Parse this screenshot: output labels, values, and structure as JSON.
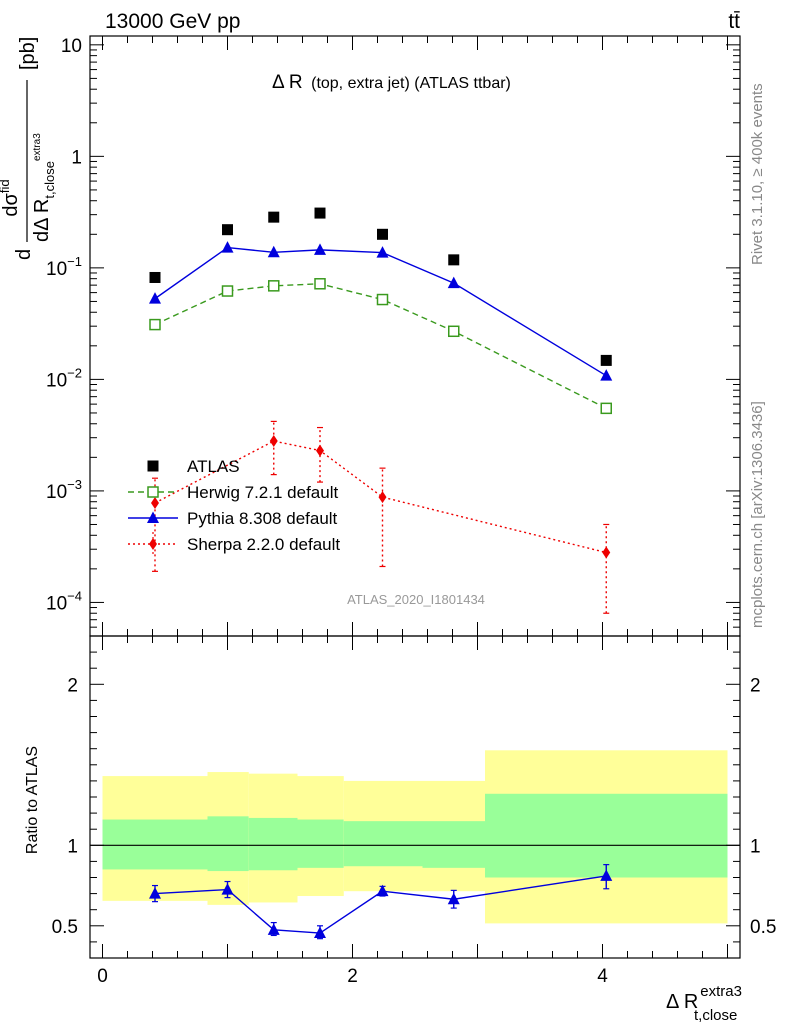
{
  "header": {
    "energy_label": "13000 GeV pp",
    "process_label": "tt̄"
  },
  "side_labels": {
    "rivet": "Rivet 3.1.10, ≥ 400k events",
    "mcplots": "mcplots.cern.ch [arXiv:1306.3436]"
  },
  "watermark": "ATLAS_2020_I1801434",
  "colors": {
    "atlas": "#000000",
    "herwig": "#3a9a1e",
    "pythia": "#0000dd",
    "sherpa": "#ee0000",
    "band_inner": "#99ff99",
    "band_outer": "#ffff99"
  },
  "chart_data": [
    {
      "type": "scatter",
      "panel": "main",
      "title": "Δ R (top, extra jet) (ATLAS ttbar)",
      "title_main": "Δ R",
      "title_sub": "(top, extra jet) (ATLAS ttbar)",
      "ylabel_parts": {
        "d": "d",
        "dsigma": "dσ",
        "sup": "fid",
        "denom": "dΔ R",
        "denom_sub": "t,close",
        "denom_supsub": "extra3",
        "unit": "[pb]"
      },
      "yscale": "log",
      "ylim": [
        5e-05,
        12
      ],
      "xlim": [
        -0.1,
        5.1
      ],
      "yticks": [
        {
          "v": 10,
          "label": "10"
        },
        {
          "v": 1,
          "label": "1"
        },
        {
          "v": 0.1,
          "base": "10",
          "exp": "−1"
        },
        {
          "v": 0.01,
          "base": "10",
          "exp": "−2"
        },
        {
          "v": 0.001,
          "base": "10",
          "exp": "−3"
        },
        {
          "v": 0.0001,
          "base": "10",
          "exp": "−4"
        }
      ],
      "legend_placement": "lower-left",
      "series": [
        {
          "name": "ATLAS",
          "key": "atlas",
          "marker": "square",
          "x": [
            0.42,
            1.0,
            1.37,
            1.74,
            2.24,
            2.81,
            4.03
          ],
          "y": [
            0.082,
            0.22,
            0.285,
            0.31,
            0.2,
            0.118,
            0.0148
          ]
        },
        {
          "name": "Herwig 7.2.1 default",
          "key": "herwig",
          "marker": "open-square",
          "line": "dashed",
          "x": [
            0.42,
            1.0,
            1.37,
            1.74,
            2.24,
            2.81,
            4.03
          ],
          "y": [
            0.031,
            0.062,
            0.069,
            0.072,
            0.052,
            0.027,
            0.0055
          ]
        },
        {
          "name": "Pythia 8.308 default",
          "key": "pythia",
          "marker": "triangle",
          "line": "solid",
          "x": [
            0.42,
            1.0,
            1.37,
            1.74,
            2.24,
            2.81,
            4.03
          ],
          "y": [
            0.053,
            0.152,
            0.138,
            0.145,
            0.137,
            0.073,
            0.0108
          ]
        },
        {
          "name": "Sherpa 2.2.0 default",
          "key": "sherpa",
          "marker": "diamond",
          "line": "dotted",
          "x": [
            0.42,
            1.37,
            1.74,
            2.24,
            4.03
          ],
          "y": [
            0.00078,
            0.0028,
            0.0023,
            0.00088,
            0.00028
          ],
          "ylo": [
            0.00019,
            0.0014,
            0.0012,
            0.00021,
            8e-05
          ],
          "yhi": [
            0.0013,
            0.0042,
            0.0037,
            0.0016,
            0.0005
          ]
        }
      ]
    },
    {
      "type": "line",
      "panel": "ratio",
      "ylabel": "Ratio to ATLAS",
      "xlabel_main": "Δ R",
      "xlabel_sup": "extra3",
      "xlabel_sub": "t,close",
      "xlim": [
        -0.1,
        5.1
      ],
      "ylim": [
        0.3,
        2.3
      ],
      "xticks": [
        {
          "v": 0,
          "label": "0"
        },
        {
          "v": 2,
          "label": "2"
        },
        {
          "v": 4,
          "label": "4"
        }
      ],
      "yticks": [
        {
          "v": 0.5,
          "label": "0.5"
        },
        {
          "v": 1,
          "label": "1"
        },
        {
          "v": 2,
          "label": "2"
        }
      ],
      "bands": {
        "edges": [
          0,
          0.84,
          1.17,
          1.56,
          1.93,
          2.56,
          3.06,
          5.0
        ],
        "inner_lo": [
          0.85,
          0.84,
          0.845,
          0.86,
          0.87,
          0.86,
          0.8
        ],
        "inner_hi": [
          1.16,
          1.18,
          1.17,
          1.16,
          1.15,
          1.15,
          1.32
        ],
        "outer_lo": [
          0.655,
          0.63,
          0.645,
          0.685,
          0.715,
          0.715,
          0.515
        ],
        "outer_hi": [
          1.43,
          1.455,
          1.445,
          1.43,
          1.4,
          1.4,
          1.59
        ]
      },
      "series": [
        {
          "name": "Pythia 8.308 default",
          "key": "pythia",
          "marker": "triangle",
          "x": [
            0.42,
            1.0,
            1.37,
            1.74,
            2.24,
            2.81,
            4.03
          ],
          "y": [
            0.7,
            0.725,
            0.475,
            0.455,
            0.715,
            0.665,
            0.81
          ],
          "ylo": [
            0.65,
            0.675,
            0.44,
            0.42,
            0.685,
            0.61,
            0.73
          ],
          "yhi": [
            0.75,
            0.775,
            0.52,
            0.5,
            0.745,
            0.72,
            0.88
          ]
        }
      ]
    }
  ]
}
